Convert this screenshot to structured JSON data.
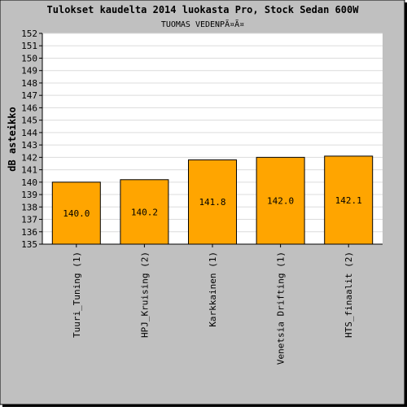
{
  "chart_data": {
    "type": "bar",
    "title": "Tulokset kaudelta 2014 luokasta Pro, Stock Sedan 600W",
    "subtitle": "TUOMAS VEDENPÃ¤Ã¤",
    "xlabel": "",
    "ylabel": "dB asteikko",
    "categories": [
      "Tuuri_Tuning (1)",
      "HPJ_Kruising (2)",
      "Karkkainen (1)",
      "Venetsia Drifting (1)",
      "HTS_finaalit (2)"
    ],
    "values": [
      140.0,
      140.2,
      141.8,
      142.0,
      142.1
    ],
    "value_labels": [
      "140.0",
      "140.2",
      "141.8",
      "142.0",
      "142.1"
    ],
    "ylim": [
      135,
      152
    ],
    "yticks": [
      135,
      136,
      137,
      138,
      139,
      140,
      141,
      142,
      143,
      144,
      145,
      146,
      147,
      148,
      149,
      150,
      151,
      152
    ],
    "grid": true,
    "legend": "none",
    "colors": {
      "bar": "#ffa500",
      "background": "#c0c0c0",
      "plot_background": "#ffffff",
      "grid": "#dcdcdc",
      "text": "#000000"
    }
  }
}
